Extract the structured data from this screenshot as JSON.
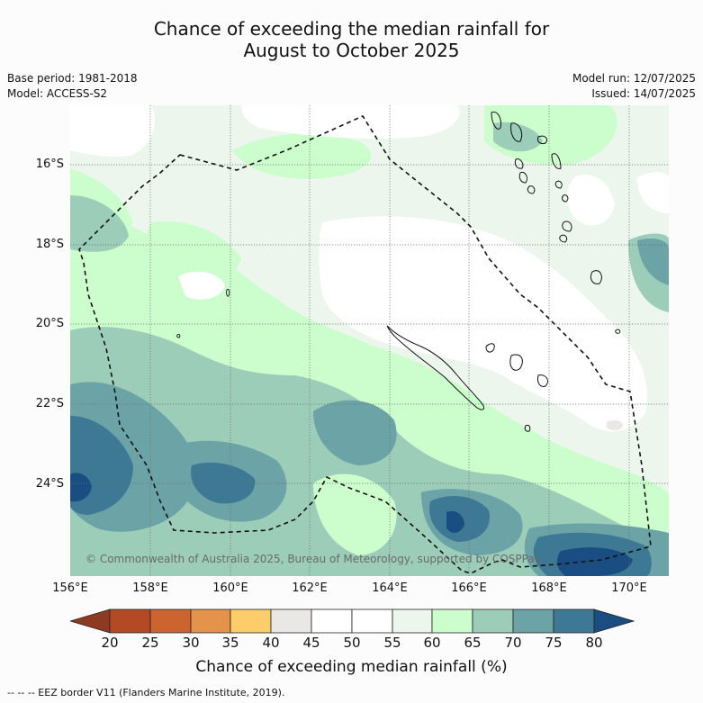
{
  "title_line1": "Chance of exceeding the median rainfall for",
  "title_line2": "August to October 2025",
  "base_period": "Base period: 1981-2018",
  "model": "Model: ACCESS-S2",
  "model_run": "Model run: 12/07/2025",
  "issued": "Issued: 14/07/2025",
  "lat_labels": [
    "16°S",
    "18°S",
    "20°S",
    "22°S",
    "24°S"
  ],
  "lon_labels": [
    "156°E",
    "158°E",
    "160°E",
    "162°E",
    "164°E",
    "166°E",
    "168°E",
    "170°E"
  ],
  "copyright": "© Commonwealth of Australia 2025, Bureau of Meteorology, supported by COSPPac",
  "colorbar": {
    "ticks": [
      "20",
      "25",
      "30",
      "35",
      "40",
      "45",
      "50",
      "55",
      "60",
      "65",
      "70",
      "75",
      "80"
    ],
    "label": "Chance of exceeding median rainfall (%)",
    "colors": {
      "below_20": "#8e3a22",
      "20_25": "#b44a24",
      "25_30": "#cc6430",
      "30_35": "#e4934a",
      "35_40": "#fdcd6a",
      "40_45": "#eae8e4",
      "45_50": "#ffffff",
      "50_55": "#ffffff",
      "55_60": "#ecf6ec",
      "60_65": "#ccfdcd",
      "65_70": "#9ccdb8",
      "70_75": "#6ba3a6",
      "75_80": "#3d7894",
      "above_80": "#1a4e82"
    }
  },
  "footer": "--  --  -- EEZ border V11 (Flanders Marine Institute, 2019)."
}
